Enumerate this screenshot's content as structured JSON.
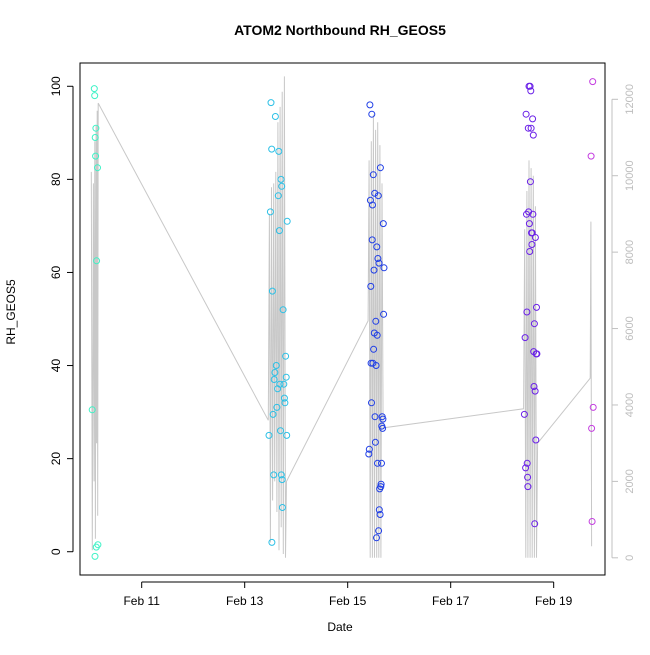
{
  "chart_data": {
    "type": "scatter",
    "title": "ATOM2 Northbound RH_GEOS5",
    "xlabel": "Date",
    "ylabel": "RH_GEOS5",
    "x_ticks": [
      "Feb 11",
      "Feb 13",
      "Feb 15",
      "Feb 17",
      "Feb 19"
    ],
    "x_tick_values": [
      "2017-02-11",
      "2017-02-13",
      "2017-02-15",
      "2017-02-17",
      "2017-02-19"
    ],
    "xlim": [
      "2017-02-09T19:15",
      "2017-02-19T23:55"
    ],
    "ylim": [
      -5,
      105
    ],
    "y_ticks": [
      0,
      20,
      40,
      60,
      80,
      100
    ],
    "y2_ticks": [
      0,
      2000,
      4000,
      6000,
      8000,
      10000,
      12000
    ],
    "y2lim": [
      -450,
      12950
    ],
    "grid": false,
    "series": [
      {
        "color": "#3ef2c6",
        "points": [
          [
            "2017-02-10T00:55",
            30.5
          ],
          [
            "2017-02-10T01:55",
            99.5
          ],
          [
            "2017-02-10T02:05",
            98.0
          ],
          [
            "2017-02-10T02:15",
            -1.0
          ],
          [
            "2017-02-10T02:20",
            89.0
          ],
          [
            "2017-02-10T02:30",
            85.0
          ],
          [
            "2017-02-10T02:40",
            91.0
          ],
          [
            "2017-02-10T02:50",
            1.0
          ],
          [
            "2017-02-10T03:00",
            62.5
          ],
          [
            "2017-02-10T03:25",
            82.5
          ],
          [
            "2017-02-10T03:35",
            1.5
          ]
        ]
      },
      {
        "color": "#2cc0e6",
        "points": [
          [
            "2017-02-13T11:20",
            25.0
          ],
          [
            "2017-02-13T12:00",
            73.0
          ],
          [
            "2017-02-13T12:15",
            96.5
          ],
          [
            "2017-02-13T12:35",
            86.5
          ],
          [
            "2017-02-13T12:40",
            2.0
          ],
          [
            "2017-02-13T12:55",
            56.0
          ],
          [
            "2017-02-13T13:15",
            29.5
          ],
          [
            "2017-02-13T13:30",
            16.5
          ],
          [
            "2017-02-13T13:45",
            37.0
          ],
          [
            "2017-02-13T14:05",
            38.5
          ],
          [
            "2017-02-13T14:20",
            93.5
          ],
          [
            "2017-02-13T14:45",
            40.0
          ],
          [
            "2017-02-13T15:00",
            31.0
          ],
          [
            "2017-02-13T15:20",
            35.0
          ],
          [
            "2017-02-13T15:40",
            76.5
          ],
          [
            "2017-02-13T15:55",
            86.0
          ],
          [
            "2017-02-13T16:10",
            69.0
          ],
          [
            "2017-02-13T16:25",
            36.0
          ],
          [
            "2017-02-13T16:40",
            26.0
          ],
          [
            "2017-02-13T16:55",
            80.0
          ],
          [
            "2017-02-13T17:05",
            16.5
          ],
          [
            "2017-02-13T17:15",
            78.5
          ],
          [
            "2017-02-13T17:25",
            15.5
          ],
          [
            "2017-02-13T17:35",
            9.5
          ],
          [
            "2017-02-13T17:55",
            52.0
          ],
          [
            "2017-02-13T18:15",
            36.0
          ],
          [
            "2017-02-13T18:30",
            33.0
          ],
          [
            "2017-02-13T18:45",
            32.0
          ],
          [
            "2017-02-13T19:05",
            42.0
          ],
          [
            "2017-02-13T19:20",
            37.5
          ],
          [
            "2017-02-13T19:35",
            25.0
          ],
          [
            "2017-02-13T19:50",
            71.0
          ]
        ]
      },
      {
        "color": "#1f3ee6",
        "points": [
          [
            "2017-02-15T09:50",
            21.0
          ],
          [
            "2017-02-15T10:05",
            22.0
          ],
          [
            "2017-02-15T10:20",
            96.0
          ],
          [
            "2017-02-15T10:35",
            75.5
          ],
          [
            "2017-02-15T10:45",
            57.0
          ],
          [
            "2017-02-15T10:55",
            40.5
          ],
          [
            "2017-02-15T11:05",
            32.0
          ],
          [
            "2017-02-15T11:15",
            94.0
          ],
          [
            "2017-02-15T11:25",
            67.0
          ],
          [
            "2017-02-15T11:35",
            74.5
          ],
          [
            "2017-02-15T11:45",
            40.5
          ],
          [
            "2017-02-15T11:55",
            81.0
          ],
          [
            "2017-02-15T12:05",
            43.5
          ],
          [
            "2017-02-15T12:15",
            60.5
          ],
          [
            "2017-02-15T12:25",
            47.0
          ],
          [
            "2017-02-15T12:35",
            77.0
          ],
          [
            "2017-02-15T12:45",
            29.0
          ],
          [
            "2017-02-15T12:55",
            23.5
          ],
          [
            "2017-02-15T13:05",
            49.5
          ],
          [
            "2017-02-15T13:15",
            40.0
          ],
          [
            "2017-02-15T13:25",
            3.0
          ],
          [
            "2017-02-15T13:35",
            65.5
          ],
          [
            "2017-02-15T13:45",
            46.5
          ],
          [
            "2017-02-15T13:55",
            19.0
          ],
          [
            "2017-02-15T14:05",
            63.0
          ],
          [
            "2017-02-15T14:15",
            76.5
          ],
          [
            "2017-02-15T14:25",
            4.5
          ],
          [
            "2017-02-15T14:35",
            62.0
          ],
          [
            "2017-02-15T14:45",
            9.0
          ],
          [
            "2017-02-15T14:55",
            13.5
          ],
          [
            "2017-02-15T15:05",
            8.0
          ],
          [
            "2017-02-15T15:15",
            82.5
          ],
          [
            "2017-02-15T15:25",
            14.0
          ],
          [
            "2017-02-15T15:35",
            14.5
          ],
          [
            "2017-02-15T15:45",
            19.0
          ],
          [
            "2017-02-15T15:55",
            27.0
          ],
          [
            "2017-02-15T16:05",
            29.0
          ],
          [
            "2017-02-15T16:15",
            26.5
          ],
          [
            "2017-02-15T16:25",
            28.5
          ],
          [
            "2017-02-15T16:35",
            70.5
          ],
          [
            "2017-02-15T16:45",
            51.0
          ],
          [
            "2017-02-15T16:55",
            61.0
          ]
        ]
      },
      {
        "color": "#6a20e8",
        "points": [
          [
            "2017-02-18T10:20",
            29.5
          ],
          [
            "2017-02-18T10:40",
            46.0
          ],
          [
            "2017-02-18T10:55",
            18.0
          ],
          [
            "2017-02-18T11:10",
            94.0
          ],
          [
            "2017-02-18T11:20",
            72.5
          ],
          [
            "2017-02-18T11:30",
            51.5
          ],
          [
            "2017-02-18T11:40",
            19.0
          ],
          [
            "2017-02-18T11:50",
            16.0
          ],
          [
            "2017-02-18T12:00",
            14.0
          ],
          [
            "2017-02-18T12:10",
            91.0
          ],
          [
            "2017-02-18T12:20",
            73.0
          ],
          [
            "2017-02-18T12:30",
            100.0
          ],
          [
            "2017-02-18T12:40",
            70.5
          ],
          [
            "2017-02-18T12:50",
            64.5
          ],
          [
            "2017-02-18T13:00",
            100.0
          ],
          [
            "2017-02-18T13:10",
            79.5
          ],
          [
            "2017-02-18T13:20",
            99.0
          ],
          [
            "2017-02-18T13:30",
            91.0
          ],
          [
            "2017-02-18T13:40",
            68.5
          ],
          [
            "2017-02-18T13:50",
            66.0
          ],
          [
            "2017-02-18T14:00",
            68.5
          ],
          [
            "2017-02-18T14:10",
            93.0
          ],
          [
            "2017-02-18T14:20",
            72.5
          ],
          [
            "2017-02-18T14:30",
            89.5
          ],
          [
            "2017-02-18T14:40",
            43.0
          ],
          [
            "2017-02-18T14:50",
            35.5
          ],
          [
            "2017-02-18T15:00",
            49.0
          ],
          [
            "2017-02-18T15:10",
            6.0
          ],
          [
            "2017-02-18T15:20",
            34.5
          ],
          [
            "2017-02-18T15:30",
            67.5
          ],
          [
            "2017-02-18T15:40",
            24.0
          ],
          [
            "2017-02-18T15:50",
            42.5
          ],
          [
            "2017-02-18T16:00",
            52.5
          ],
          [
            "2017-02-18T16:10",
            42.5
          ]
        ]
      },
      {
        "color": "#c43ee0",
        "points": [
          [
            "2017-02-19T17:25",
            85.0
          ],
          [
            "2017-02-19T17:40",
            26.5
          ],
          [
            "2017-02-19T17:55",
            6.5
          ],
          [
            "2017-02-19T18:10",
            101.0
          ],
          [
            "2017-02-19T18:25",
            31.0
          ]
        ]
      }
    ],
    "secondary_line": {
      "axis": "right",
      "color": "#c8c8c8",
      "note_units": "right axis values",
      "points": [
        [
          "2017-02-10T00:30",
          10100
        ],
        [
          "2017-02-10T01:00",
          200
        ],
        [
          "2017-02-10T01:30",
          9800
        ],
        [
          "2017-02-10T01:50",
          2000
        ],
        [
          "2017-02-10T02:10",
          10900
        ],
        [
          "2017-02-10T02:25",
          500
        ],
        [
          "2017-02-10T02:45",
          11300
        ],
        [
          "2017-02-10T03:00",
          3000
        ],
        [
          "2017-02-10T03:15",
          11700
        ],
        [
          "2017-02-10T03:30",
          1100
        ],
        [
          "2017-02-10T03:45",
          11900
        ],
        [
          "2017-02-13T11:00",
          3600
        ],
        [
          "2017-02-13T11:30",
          9000
        ],
        [
          "2017-02-13T12:00",
          400
        ],
        [
          "2017-02-13T12:30",
          9700
        ],
        [
          "2017-02-13T13:00",
          1500
        ],
        [
          "2017-02-13T13:30",
          9800
        ],
        [
          "2017-02-13T14:00",
          2000
        ],
        [
          "2017-02-13T14:30",
          10100
        ],
        [
          "2017-02-13T15:00",
          1200
        ],
        [
          "2017-02-13T15:30",
          11400
        ],
        [
          "2017-02-13T16:00",
          200
        ],
        [
          "2017-02-13T16:30",
          11800
        ],
        [
          "2017-02-13T17:00",
          800
        ],
        [
          "2017-02-13T17:30",
          12200
        ],
        [
          "2017-02-13T18:00",
          100
        ],
        [
          "2017-02-13T18:30",
          12600
        ],
        [
          "2017-02-13T19:00",
          0
        ],
        [
          "2017-02-13T19:30",
          2000
        ],
        [
          "2017-02-15T09:30",
          6200
        ],
        [
          "2017-02-15T10:00",
          10400
        ],
        [
          "2017-02-15T10:30",
          0
        ],
        [
          "2017-02-15T11:00",
          10900
        ],
        [
          "2017-02-15T11:30",
          0
        ],
        [
          "2017-02-15T12:00",
          11600
        ],
        [
          "2017-02-15T12:30",
          0
        ],
        [
          "2017-02-15T13:00",
          11200
        ],
        [
          "2017-02-15T13:30",
          0
        ],
        [
          "2017-02-15T14:00",
          11400
        ],
        [
          "2017-02-15T14:30",
          0
        ],
        [
          "2017-02-15T15:00",
          10800
        ],
        [
          "2017-02-15T15:30",
          0
        ],
        [
          "2017-02-15T16:00",
          9800
        ],
        [
          "2017-02-15T16:30",
          3400
        ],
        [
          "2017-02-18T10:00",
          3900
        ],
        [
          "2017-02-18T10:30",
          8600
        ],
        [
          "2017-02-18T11:00",
          0
        ],
        [
          "2017-02-18T11:30",
          9600
        ],
        [
          "2017-02-18T12:00",
          0
        ],
        [
          "2017-02-18T12:30",
          10400
        ],
        [
          "2017-02-18T13:00",
          0
        ],
        [
          "2017-02-18T13:30",
          10200
        ],
        [
          "2017-02-18T14:00",
          0
        ],
        [
          "2017-02-18T14:30",
          10000
        ],
        [
          "2017-02-18T15:00",
          0
        ],
        [
          "2017-02-18T15:30",
          9200
        ],
        [
          "2017-02-18T16:00",
          0
        ],
        [
          "2017-02-18T16:30",
          3000
        ],
        [
          "2017-02-19T17:00",
          4700
        ],
        [
          "2017-02-19T17:20",
          8800
        ],
        [
          "2017-02-19T17:40",
          300
        ]
      ]
    }
  }
}
